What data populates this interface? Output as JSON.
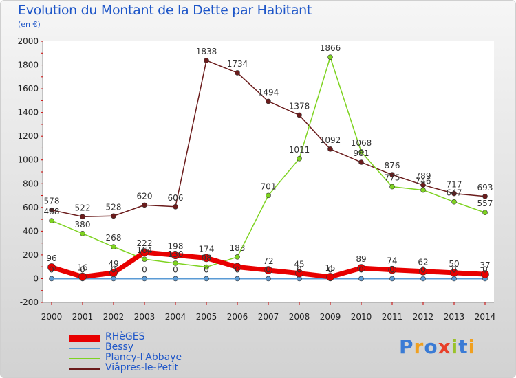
{
  "title": "Evolution du Montant de la Dette par Habitant",
  "subtitle": "(en €)",
  "logo": {
    "text": "Proxiti",
    "letters": [
      {
        "ch": "P",
        "color": "#3a7bd5"
      },
      {
        "ch": "r",
        "color": "#f0a020"
      },
      {
        "ch": "o",
        "color": "#3a7bd5"
      },
      {
        "ch": "x",
        "color": "#e8402a"
      },
      {
        "ch": "i",
        "color": "#9ac22a"
      },
      {
        "ch": "t",
        "color": "#3a7bd5"
      },
      {
        "ch": "i",
        "color": "#f0a020"
      }
    ]
  },
  "chart_data": {
    "type": "line",
    "title": "Evolution du Montant de la Dette par Habitant",
    "subtitle": "(en €)",
    "x": [
      2000,
      2001,
      2002,
      2003,
      2004,
      2005,
      2006,
      2007,
      2008,
      2009,
      2010,
      2011,
      2012,
      2013,
      2014
    ],
    "ylim": [
      -200,
      2000
    ],
    "yticks": [
      -200,
      0,
      200,
      400,
      600,
      800,
      1000,
      1200,
      1400,
      1600,
      1800,
      2000
    ],
    "grid": false,
    "legend_position": "bottom-left",
    "series": [
      {
        "name": "RHèGES",
        "color": "#e80000",
        "values": [
          96,
          16,
          49,
          222,
          198,
          174,
          98,
          72,
          45,
          15,
          89,
          74,
          62,
          50,
          37
        ],
        "labels": [
          "96",
          "16",
          "49",
          "222",
          "198",
          "174",
          "",
          "72",
          "45",
          "15",
          "89",
          "74",
          "62",
          "50",
          "37"
        ]
      },
      {
        "name": "Bessy",
        "color": "#5b9bd5",
        "values": [
          0,
          0,
          0,
          0,
          0,
          0,
          0,
          0,
          0,
          0,
          0,
          0,
          0,
          0,
          0
        ],
        "labels": [
          "0",
          "0",
          "0",
          "0",
          "0",
          "0",
          "0",
          "0",
          "0",
          "0",
          "0",
          "0",
          "0",
          "0",
          "0"
        ]
      },
      {
        "name": "Plancy-l'Abbaye",
        "color": "#7ed321",
        "values": [
          488,
          380,
          268,
          164,
          130,
          98,
          183,
          701,
          1011,
          1866,
          1068,
          775,
          746,
          647,
          557
        ],
        "labels": [
          "488",
          "380",
          "268",
          "164",
          "130",
          "98",
          "183",
          "701",
          "1011",
          "1866",
          "1068",
          "775",
          "746",
          "647",
          "557"
        ]
      },
      {
        "name": "Viâpres-le-Petit",
        "color": "#6b1c1c",
        "values": [
          578,
          522,
          528,
          620,
          606,
          1838,
          1734,
          1494,
          1378,
          1092,
          981,
          876,
          789,
          717,
          693
        ],
        "labels": [
          "578",
          "522",
          "528",
          "620",
          "606",
          "1838",
          "1734",
          "1494",
          "1378",
          "1092",
          "981",
          "876",
          "789",
          "717",
          "693"
        ]
      }
    ]
  }
}
